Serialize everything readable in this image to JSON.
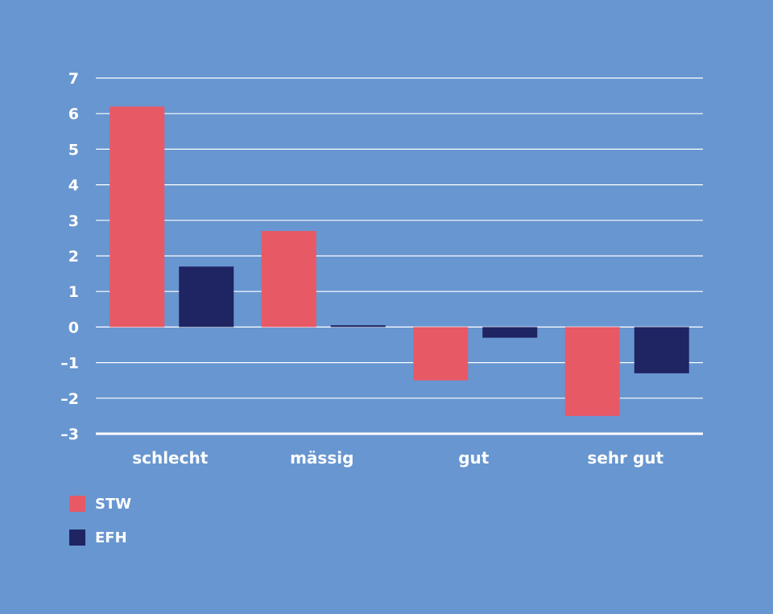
{
  "chart_data": {
    "type": "bar",
    "categories": [
      "schlecht",
      "mässig",
      "gut",
      "sehr gut"
    ],
    "series": [
      {
        "name": "STW",
        "color": "#e85966",
        "values": [
          6.2,
          2.7,
          -1.5,
          -2.5
        ]
      },
      {
        "name": "EFH",
        "color": "#1f2463",
        "values": [
          1.7,
          0.05,
          -0.3,
          -1.3
        ]
      }
    ],
    "ylim": [
      -3,
      7
    ],
    "yticks": [
      {
        "value": 7,
        "label": "7"
      },
      {
        "value": 6,
        "label": "6"
      },
      {
        "value": 5,
        "label": "5"
      },
      {
        "value": 4,
        "label": "4"
      },
      {
        "value": 3,
        "label": "3"
      },
      {
        "value": 2,
        "label": "2"
      },
      {
        "value": 1,
        "label": "1"
      },
      {
        "value": 0,
        "label": "0"
      },
      {
        "value": -1,
        "label": "–1"
      },
      {
        "value": -2,
        "label": "–2"
      },
      {
        "value": -3,
        "label": "–3"
      }
    ],
    "grid": true,
    "legend_position": "bottom-left",
    "background": "#6896d0",
    "gridline_color": "#ffffff",
    "text_color": "#ffffff"
  },
  "legend": {
    "items": [
      {
        "label": "STW",
        "color": "#e85966"
      },
      {
        "label": "EFH",
        "color": "#1f2463"
      }
    ]
  }
}
